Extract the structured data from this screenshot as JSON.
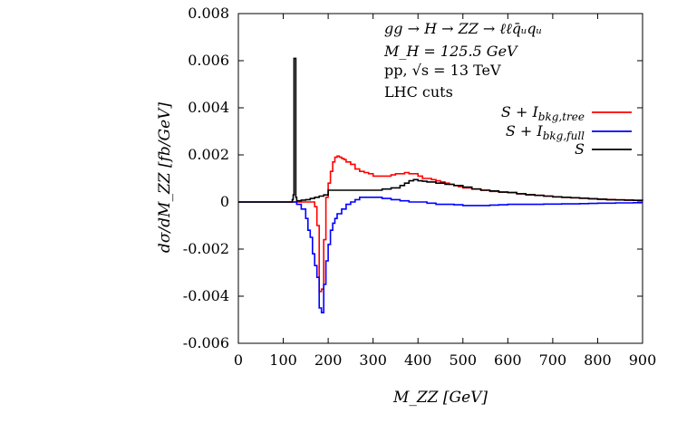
{
  "chart_data": {
    "type": "line",
    "title": "",
    "xlabel": "M_ZZ [GeV]",
    "ylabel": "dσ/dM_ZZ [fb/GeV]",
    "xlim": [
      0,
      900
    ],
    "ylim": [
      -0.006,
      0.008
    ],
    "x_ticks": [
      0,
      100,
      200,
      300,
      400,
      500,
      600,
      700,
      800,
      900
    ],
    "x_tick_labels": [
      "0",
      "100",
      "200",
      "300",
      "400",
      "500",
      "600",
      "700",
      "800",
      "900"
    ],
    "y_ticks": [
      -0.006,
      -0.004,
      -0.002,
      0,
      0.002,
      0.004,
      0.006,
      0.008
    ],
    "y_tick_labels": [
      "-0.006",
      "-0.004",
      "-0.002",
      "0",
      "0.002",
      "0.004",
      "0.006",
      "0.008"
    ],
    "annotations": {
      "process": "gg → H → ZZ → ℓℓq̄ᵤqᵤ",
      "mass": "M_H = 125.5 GeV",
      "energy": "pp, √s = 13 TeV",
      "cuts": "LHC cuts"
    },
    "legend_position": "top-right",
    "series": [
      {
        "name": "S + I_bkg,tree",
        "legend_main": "S + I",
        "legend_sub": "bkg,tree",
        "color": "#ff0000",
        "x": [
          0,
          120,
          125,
          130,
          140,
          150,
          160,
          165,
          170,
          175,
          180,
          185,
          190,
          195,
          200,
          205,
          210,
          215,
          220,
          225,
          230,
          235,
          240,
          250,
          260,
          270,
          280,
          290,
          300,
          310,
          320,
          330,
          340,
          350,
          360,
          370,
          380,
          390,
          400,
          410,
          420,
          430,
          440,
          450,
          460,
          470,
          480,
          490,
          500,
          520,
          540,
          560,
          580,
          600,
          620,
          640,
          660,
          680,
          700,
          720,
          740,
          760,
          780,
          800,
          820,
          840,
          860,
          880,
          900
        ],
        "y": [
          0,
          0,
          0,
          0,
          0,
          0,
          0,
          0,
          -0.0002,
          -0.001,
          -0.0038,
          -0.0037,
          -0.0016,
          0.0002,
          0.0008,
          0.0013,
          0.0017,
          0.0019,
          0.00195,
          0.0019,
          0.00185,
          0.0018,
          0.0017,
          0.0016,
          0.0014,
          0.0013,
          0.00125,
          0.0012,
          0.0011,
          0.0011,
          0.0011,
          0.0011,
          0.00115,
          0.0012,
          0.0012,
          0.00125,
          0.0012,
          0.0012,
          0.0011,
          0.001,
          0.001,
          0.00095,
          0.0009,
          0.00085,
          0.0008,
          0.00075,
          0.0007,
          0.00065,
          0.0006,
          0.00055,
          0.0005,
          0.00045,
          0.00042,
          0.0004,
          0.00035,
          0.0003,
          0.00028,
          0.00025,
          0.00022,
          0.0002,
          0.00018,
          0.00016,
          0.00014,
          0.00012,
          0.0001,
          9e-05,
          8e-05,
          7e-05,
          5e-05
        ]
      },
      {
        "name": "S + I_bkg,full",
        "legend_main": "S + I",
        "legend_sub": "bkg,full",
        "color": "#0000ff",
        "x": [
          0,
          120,
          125,
          130,
          140,
          150,
          155,
          160,
          165,
          170,
          175,
          180,
          185,
          190,
          195,
          200,
          205,
          210,
          215,
          220,
          230,
          240,
          250,
          260,
          270,
          280,
          290,
          300,
          320,
          340,
          360,
          380,
          400,
          420,
          440,
          460,
          480,
          500,
          520,
          540,
          560,
          580,
          600,
          620,
          640,
          660,
          680,
          700,
          720,
          740,
          760,
          780,
          800,
          820,
          840,
          860,
          880,
          900
        ],
        "y": [
          0,
          0,
          0,
          -0.0001,
          -0.0003,
          -0.0007,
          -0.0012,
          -0.0015,
          -0.0022,
          -0.0027,
          -0.0032,
          -0.0045,
          -0.0047,
          -0.0035,
          -0.0025,
          -0.0018,
          -0.0012,
          -0.0009,
          -0.0007,
          -0.0005,
          -0.0003,
          -0.0001,
          0,
          0.0001,
          0.0002,
          0.0002,
          0.0002,
          0.0002,
          0.00015,
          0.0001,
          5e-05,
          0,
          0,
          -5e-05,
          -0.0001,
          -0.0001,
          -0.00012,
          -0.00015,
          -0.00015,
          -0.00015,
          -0.00013,
          -0.00012,
          -0.0001,
          -0.0001,
          -0.0001,
          -0.0001,
          -9e-05,
          -9e-05,
          -8e-05,
          -8e-05,
          -7e-05,
          -6e-05,
          -5e-05,
          -5e-05,
          -4e-05,
          -4e-05,
          -3e-05,
          -3e-05
        ]
      },
      {
        "name": "S",
        "legend_main": "S",
        "legend_sub": "",
        "color": "#000000",
        "x": [
          0,
          118,
          120,
          122,
          124,
          125,
          126,
          128,
          130,
          140,
          150,
          160,
          170,
          180,
          190,
          200,
          250,
          300,
          320,
          340,
          360,
          370,
          380,
          390,
          400,
          410,
          420,
          440,
          460,
          480,
          500,
          520,
          540,
          560,
          580,
          600,
          620,
          640,
          660,
          680,
          700,
          720,
          740,
          760,
          780,
          800,
          820,
          840,
          860,
          880,
          900
        ],
        "y": [
          0,
          0,
          0.0001,
          0.0003,
          0.0061,
          0.0061,
          0.0061,
          0.0002,
          5e-05,
          8e-05,
          0.0001,
          0.00015,
          0.0002,
          0.00025,
          0.0003,
          0.0005,
          0.0005,
          0.0005,
          0.00055,
          0.0006,
          0.0007,
          0.0008,
          0.0009,
          0.00095,
          0.0009,
          0.00088,
          0.00085,
          0.0008,
          0.00075,
          0.0007,
          0.00063,
          0.00055,
          0.0005,
          0.00047,
          0.00042,
          0.0004,
          0.00035,
          0.00031,
          0.00028,
          0.00025,
          0.00022,
          0.0002,
          0.00018,
          0.00016,
          0.00014,
          0.00012,
          0.0001,
          9e-05,
          8e-05,
          7e-05,
          6e-05
        ]
      }
    ]
  }
}
